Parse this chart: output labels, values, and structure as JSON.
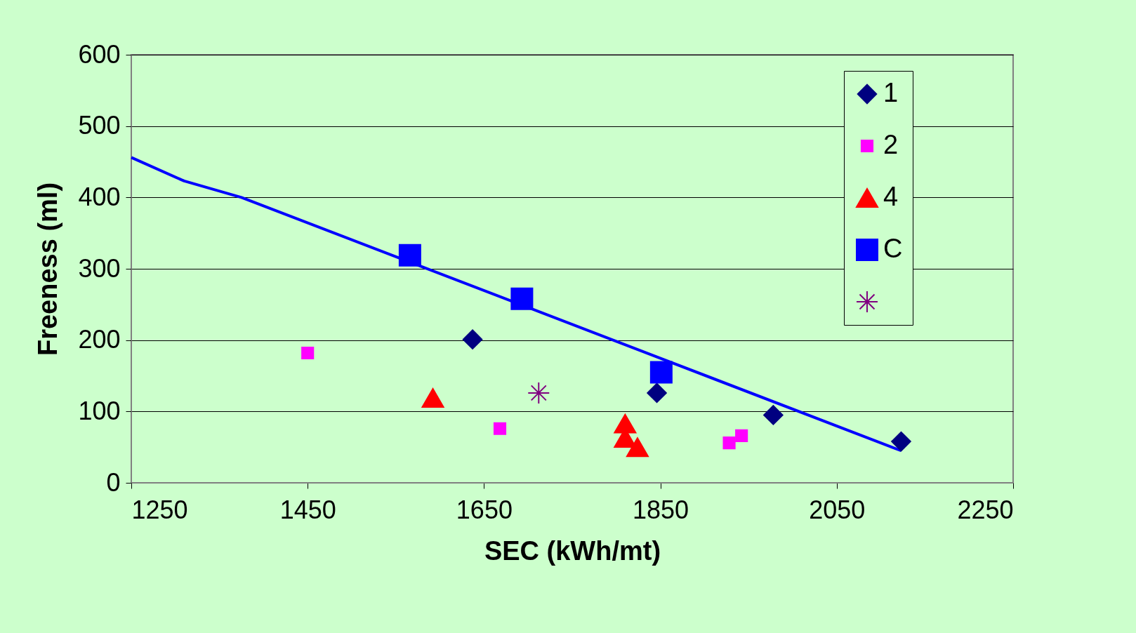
{
  "chart_data": {
    "type": "scatter",
    "xlabel": "SEC (kWh/mt)",
    "ylabel": "Freeness (ml)",
    "xlim": [
      1250,
      2250
    ],
    "xticks": [
      1250,
      1450,
      1650,
      1850,
      2050,
      2250
    ],
    "ylim": [
      0,
      600
    ],
    "yticks": [
      0,
      100,
      200,
      300,
      400,
      500,
      600
    ],
    "grid": "y",
    "legend": "top right",
    "series": [
      {
        "name": "1",
        "color": "#000080",
        "marker": "diamond",
        "x": [
          1637,
          1846,
          1978,
          2123
        ],
        "values": [
          201,
          126,
          95,
          58
        ]
      },
      {
        "name": "2",
        "color": "#ff00ff",
        "marker": "square",
        "x": [
          1450,
          1668,
          1928,
          1942
        ],
        "values": [
          182,
          76,
          56,
          66
        ]
      },
      {
        "name": "4",
        "color": "#ff0000",
        "marker": "triangle",
        "x": [
          1592,
          1810,
          1810,
          1824
        ],
        "values": [
          119,
          83,
          63,
          50
        ]
      },
      {
        "name": "C",
        "color": "#0000ff",
        "marker": "square",
        "x": [
          1566,
          1693,
          1851
        ],
        "values": [
          319,
          258,
          155
        ]
      },
      {
        "color": "#800080",
        "marker": "cross",
        "x": [
          1712
        ],
        "values": [
          126
        ]
      },
      {
        "type": "line",
        "color": "#0000ff",
        "x": [
          1250,
          1310,
          1375,
          2123
        ],
        "values": [
          456,
          423,
          400,
          45
        ]
      }
    ]
  }
}
